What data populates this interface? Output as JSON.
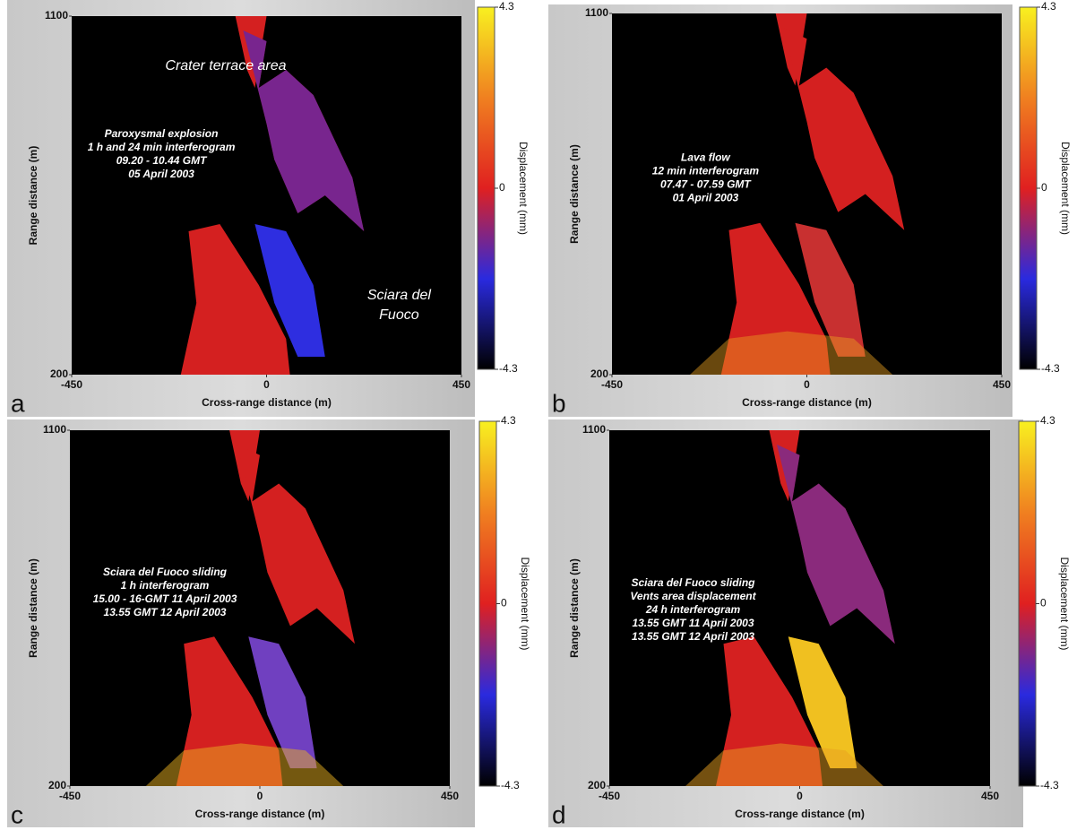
{
  "chart_data": [
    {
      "type": "image",
      "panel_label": "a",
      "xlabel": "Cross-range distance (m)",
      "ylabel": "Range distance (m)",
      "xlim": [
        -450,
        450
      ],
      "ylim": [
        200,
        1100
      ],
      "xticks": [
        -450,
        0,
        450
      ],
      "yticks": [
        200,
        1100
      ],
      "colorbar": {
        "label": "Displacement (mm)",
        "lim": [
          -4.3,
          4.3
        ],
        "ticks": [
          -4.3,
          0,
          4.3
        ]
      },
      "annotations": [
        [
          "Crater terrace area"
        ],
        [
          "Paroxysmal explosion",
          "1 h and 24 min interferogram",
          "09.20 - 10.44 GMT",
          "05 April 2003"
        ],
        [
          "Sciara del",
          "Fuoco"
        ]
      ]
    },
    {
      "type": "image",
      "panel_label": "b",
      "xlabel": "Cross-range distance (m)",
      "ylabel": "Range distance (m)",
      "xlim": [
        -450,
        450
      ],
      "ylim": [
        200,
        1100
      ],
      "xticks": [
        -450,
        0,
        450
      ],
      "yticks": [
        200,
        1100
      ],
      "colorbar": {
        "label": "Displacement (mm)",
        "lim": [
          -4.3,
          4.3
        ],
        "ticks": [
          -4.3,
          0,
          4.3
        ]
      },
      "annotations": [
        [
          "Lava flow",
          "12 min interferogram",
          "07.47 - 07.59 GMT",
          "01 April 2003"
        ]
      ]
    },
    {
      "type": "image",
      "panel_label": "c",
      "xlabel": "Cross-range distance (m)",
      "ylabel": "Range distance (m)",
      "xlim": [
        -450,
        450
      ],
      "ylim": [
        200,
        1100
      ],
      "xticks": [
        -450,
        0,
        450
      ],
      "yticks": [
        200,
        1100
      ],
      "colorbar": {
        "label": "Displacement (mm)",
        "lim": [
          -4.3,
          4.3
        ],
        "ticks": [
          -4.3,
          0,
          4.3
        ]
      },
      "annotations": [
        [
          "Sciara del Fuoco sliding",
          "1 h  interferogram",
          "15.00 - 16-GMT 11 April 2003",
          "13.55 GMT 12 April 2003"
        ]
      ]
    },
    {
      "type": "image",
      "panel_label": "d",
      "xlabel": "Cross-range distance (m)",
      "ylabel": "Range distance (m)",
      "xlim": [
        -450,
        450
      ],
      "ylim": [
        200,
        1100
      ],
      "xticks": [
        -450,
        0,
        450
      ],
      "yticks": [
        200,
        1100
      ],
      "colorbar": {
        "label": "Displacement (mm)",
        "lim": [
          -4.3,
          4.3
        ],
        "ticks": [
          -4.3,
          0,
          4.3
        ]
      },
      "annotations": [
        [
          "Sciara del Fuoco sliding",
          "Vents area displacement",
          "24 h  interferogram",
          "13.55 GMT 11 April 2003",
          "13.55 GMT 12 April 2003"
        ]
      ]
    }
  ]
}
